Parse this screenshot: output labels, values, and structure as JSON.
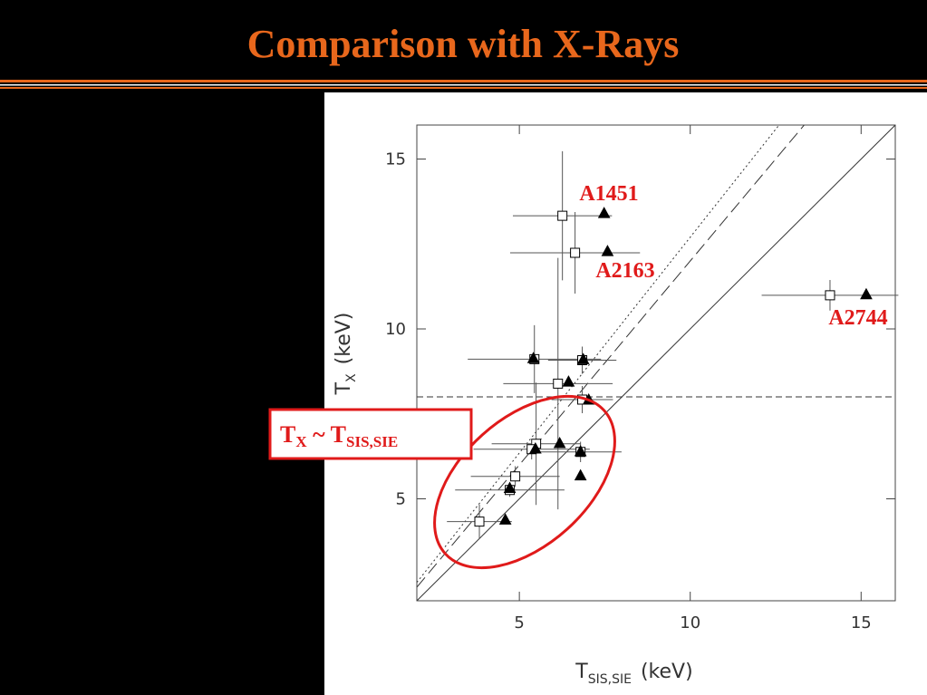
{
  "slide": {
    "title": "Comparison with X-Rays"
  },
  "chart_data": {
    "type": "scatter",
    "x_label": [
      "T",
      "SIS,SIE",
      "(keV)"
    ],
    "y_label": [
      "T",
      "X",
      "(keV)"
    ],
    "xlim": [
      2,
      16
    ],
    "ylim": [
      2,
      16
    ],
    "xticks": [
      5,
      10,
      15
    ],
    "yticks": [
      5,
      10,
      15
    ],
    "grid": false,
    "reference_lines": [
      {
        "slope": 1,
        "style": "solid"
      },
      {
        "slope": 1.2,
        "style": "dashed"
      },
      {
        "slope": 1.27,
        "style": "dotted"
      }
    ],
    "hline": 8,
    "series": [
      {
        "color": "#000000",
        "marker": "square",
        "filled": false,
        "x": [
          6.26,
          6.63,
          14.09,
          5.44,
          6.84,
          6.13,
          6.84,
          5.49,
          5.36,
          6.79,
          4.88,
          4.72,
          3.83
        ],
        "y": [
          13.33,
          12.24,
          10.99,
          9.11,
          9.08,
          8.39,
          7.92,
          6.62,
          6.46,
          6.38,
          5.66,
          5.26,
          4.33
        ],
        "xerr": [
          1.45,
          1.9,
          2.0,
          1.95,
          1.0,
          1.6,
          0.9,
          1.3,
          1.7,
          1.2,
          1.3,
          1.6,
          0.95
        ],
        "yerr": [
          1.9,
          1.2,
          0.45,
          1.0,
          0.4,
          3.7,
          0.4,
          1.8,
          0.3,
          0.3,
          0.3,
          0.2,
          0.5
        ]
      },
      {
        "color": "#000000",
        "marker": "triangle",
        "filled": true,
        "x": [
          7.48,
          7.58,
          15.15,
          5.41,
          6.87,
          6.44,
          7.03,
          5.47,
          6.18,
          6.79,
          6.79,
          4.72,
          4.59
        ],
        "y": [
          13.41,
          12.29,
          11.02,
          9.14,
          9.11,
          8.45,
          7.92,
          6.48,
          6.64,
          6.4,
          5.69,
          5.32,
          4.39
        ]
      }
    ],
    "annotations": [
      "A1451",
      "A2163",
      "A2744"
    ],
    "callout": [
      "T",
      "X",
      " ~ T",
      "SIS,SIE"
    ]
  }
}
